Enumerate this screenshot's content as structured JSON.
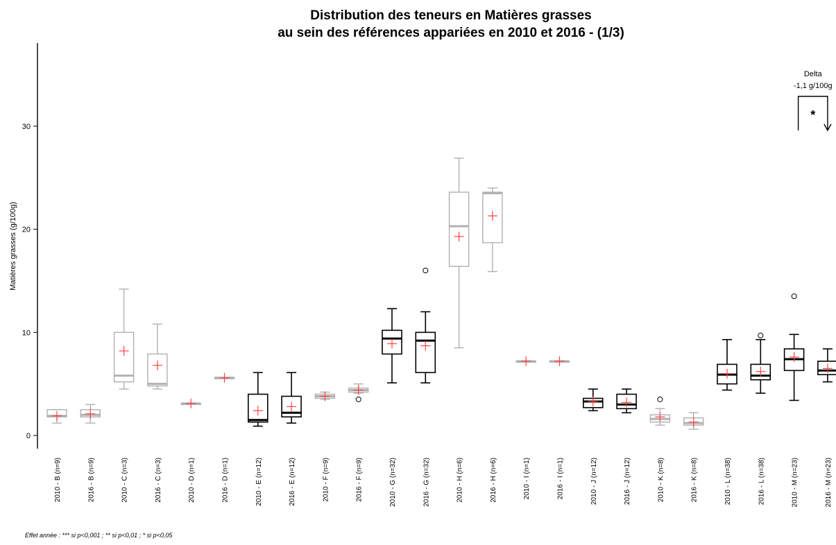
{
  "chart_data": {
    "type": "box",
    "title": [
      "Distribution des teneurs en Matières grasses",
      "au sein des références appariées en 2010 et 2016 - (1/3)"
    ],
    "ylabel": "Matières grasses (g/100g)",
    "ylim": [
      0,
      37
    ],
    "yticks": [
      0,
      10,
      20,
      30
    ],
    "colors": {
      "significant": "#000000",
      "not_significant": "#b0b0b0",
      "mean_marker": "#ff4040"
    },
    "boxes": [
      {
        "label": "2010 - B (n=9)",
        "min": 1.2,
        "q1": 1.8,
        "median": 1.9,
        "q3": 2.5,
        "max": 2.5,
        "mean": 1.9,
        "outliers": [],
        "significant": false
      },
      {
        "label": "2016 - B (n=9)",
        "min": 1.2,
        "q1": 1.8,
        "median": 2.0,
        "q3": 2.5,
        "max": 3.0,
        "mean": 2.1,
        "outliers": [],
        "significant": false
      },
      {
        "label": "2010 - C (n=3)",
        "min": 4.5,
        "q1": 5.2,
        "median": 5.8,
        "q3": 10.0,
        "max": 14.2,
        "mean": 8.2,
        "outliers": [],
        "significant": false
      },
      {
        "label": "2016 - C (n=3)",
        "min": 4.5,
        "q1": 4.8,
        "median": 5.0,
        "q3": 7.9,
        "max": 10.8,
        "mean": 6.8,
        "outliers": [],
        "significant": false
      },
      {
        "label": "2010 - D (n=1)",
        "min": 3.1,
        "q1": 3.1,
        "median": 3.1,
        "q3": 3.1,
        "max": 3.1,
        "mean": 3.1,
        "outliers": [],
        "significant": false
      },
      {
        "label": "2016 - D (n=1)",
        "min": 5.6,
        "q1": 5.6,
        "median": 5.6,
        "q3": 5.6,
        "max": 5.6,
        "mean": 5.6,
        "outliers": [],
        "significant": false
      },
      {
        "label": "2010 - E (n=12)",
        "min": 0.9,
        "q1": 1.3,
        "median": 1.5,
        "q3": 4.0,
        "max": 6.1,
        "mean": 2.4,
        "outliers": [],
        "significant": true
      },
      {
        "label": "2016 - E (n=12)",
        "min": 1.2,
        "q1": 1.8,
        "median": 2.2,
        "q3": 3.8,
        "max": 6.1,
        "mean": 2.8,
        "outliers": [],
        "significant": true
      },
      {
        "label": "2010 - F (n=9)",
        "min": 3.5,
        "q1": 3.6,
        "median": 3.8,
        "q3": 4.0,
        "max": 4.2,
        "mean": 3.8,
        "outliers": [],
        "significant": false
      },
      {
        "label": "2016 - F (n=9)",
        "min": 4.1,
        "q1": 4.2,
        "median": 4.4,
        "q3": 4.6,
        "max": 5.0,
        "mean": 4.4,
        "outliers": [
          3.5
        ],
        "significant": false
      },
      {
        "label": "2010 - G (n=32)",
        "min": 5.1,
        "q1": 7.9,
        "median": 9.4,
        "q3": 10.2,
        "max": 12.3,
        "mean": 8.9,
        "outliers": [],
        "significant": true
      },
      {
        "label": "2016 - G (n=32)",
        "min": 5.1,
        "q1": 6.1,
        "median": 9.2,
        "q3": 10.0,
        "max": 12.0,
        "mean": 8.7,
        "outliers": [
          16.0
        ],
        "significant": true
      },
      {
        "label": "2010 - H (n=6)",
        "min": 8.5,
        "q1": 16.4,
        "median": 20.3,
        "q3": 23.6,
        "max": 26.9,
        "mean": 19.3,
        "outliers": [],
        "significant": false
      },
      {
        "label": "2016 - H (n=6)",
        "min": 15.9,
        "q1": 18.7,
        "median": 23.5,
        "q3": 23.6,
        "max": 24.0,
        "mean": 21.3,
        "outliers": [],
        "significant": false
      },
      {
        "label": "2010 - I (n=1)",
        "min": 7.2,
        "q1": 7.2,
        "median": 7.2,
        "q3": 7.2,
        "max": 7.2,
        "mean": 7.2,
        "outliers": [],
        "significant": false
      },
      {
        "label": "2016 - I (n=1)",
        "min": 7.2,
        "q1": 7.2,
        "median": 7.2,
        "q3": 7.2,
        "max": 7.2,
        "mean": 7.2,
        "outliers": [],
        "significant": false
      },
      {
        "label": "2010 - J (n=12)",
        "min": 2.4,
        "q1": 2.7,
        "median": 3.3,
        "q3": 3.6,
        "max": 4.5,
        "mean": 3.3,
        "outliers": [],
        "significant": true
      },
      {
        "label": "2016 - J (n=12)",
        "min": 2.2,
        "q1": 2.6,
        "median": 3.0,
        "q3": 4.0,
        "max": 4.5,
        "mean": 3.2,
        "outliers": [],
        "significant": true
      },
      {
        "label": "2010 - K (n=8)",
        "min": 1.0,
        "q1": 1.3,
        "median": 1.6,
        "q3": 2.0,
        "max": 2.6,
        "mean": 1.8,
        "outliers": [
          3.5
        ],
        "significant": false
      },
      {
        "label": "2016 - K (n=8)",
        "min": 0.6,
        "q1": 1.0,
        "median": 1.2,
        "q3": 1.7,
        "max": 2.2,
        "mean": 1.3,
        "outliers": [],
        "significant": false
      },
      {
        "label": "2010 - L (n=38)",
        "min": 4.4,
        "q1": 5.0,
        "median": 5.9,
        "q3": 6.9,
        "max": 9.3,
        "mean": 6.0,
        "outliers": [],
        "significant": true
      },
      {
        "label": "2016 - L (n=38)",
        "min": 4.1,
        "q1": 5.4,
        "median": 5.8,
        "q3": 6.9,
        "max": 9.3,
        "mean": 6.2,
        "outliers": [
          9.7
        ],
        "significant": true
      },
      {
        "label": "2010 - M (n=23)",
        "min": 3.4,
        "q1": 6.3,
        "median": 7.4,
        "q3": 8.4,
        "max": 9.8,
        "mean": 7.6,
        "outliers": [
          13.5
        ],
        "significant": true
      },
      {
        "label": "2016 - M (n=23)",
        "min": 5.2,
        "q1": 5.9,
        "median": 6.3,
        "q3": 7.2,
        "max": 8.4,
        "mean": 6.5,
        "outliers": [],
        "significant": true
      }
    ],
    "annotations": [
      {
        "label_line1": "Delta",
        "label_line2": "-1,1 g/100g",
        "significance": "*",
        "from_box": 22,
        "to_box": 23
      }
    ],
    "footnote": "Effet année : *** si p<0,001 ; ** si p<0,01 ; * si p<0,05"
  }
}
